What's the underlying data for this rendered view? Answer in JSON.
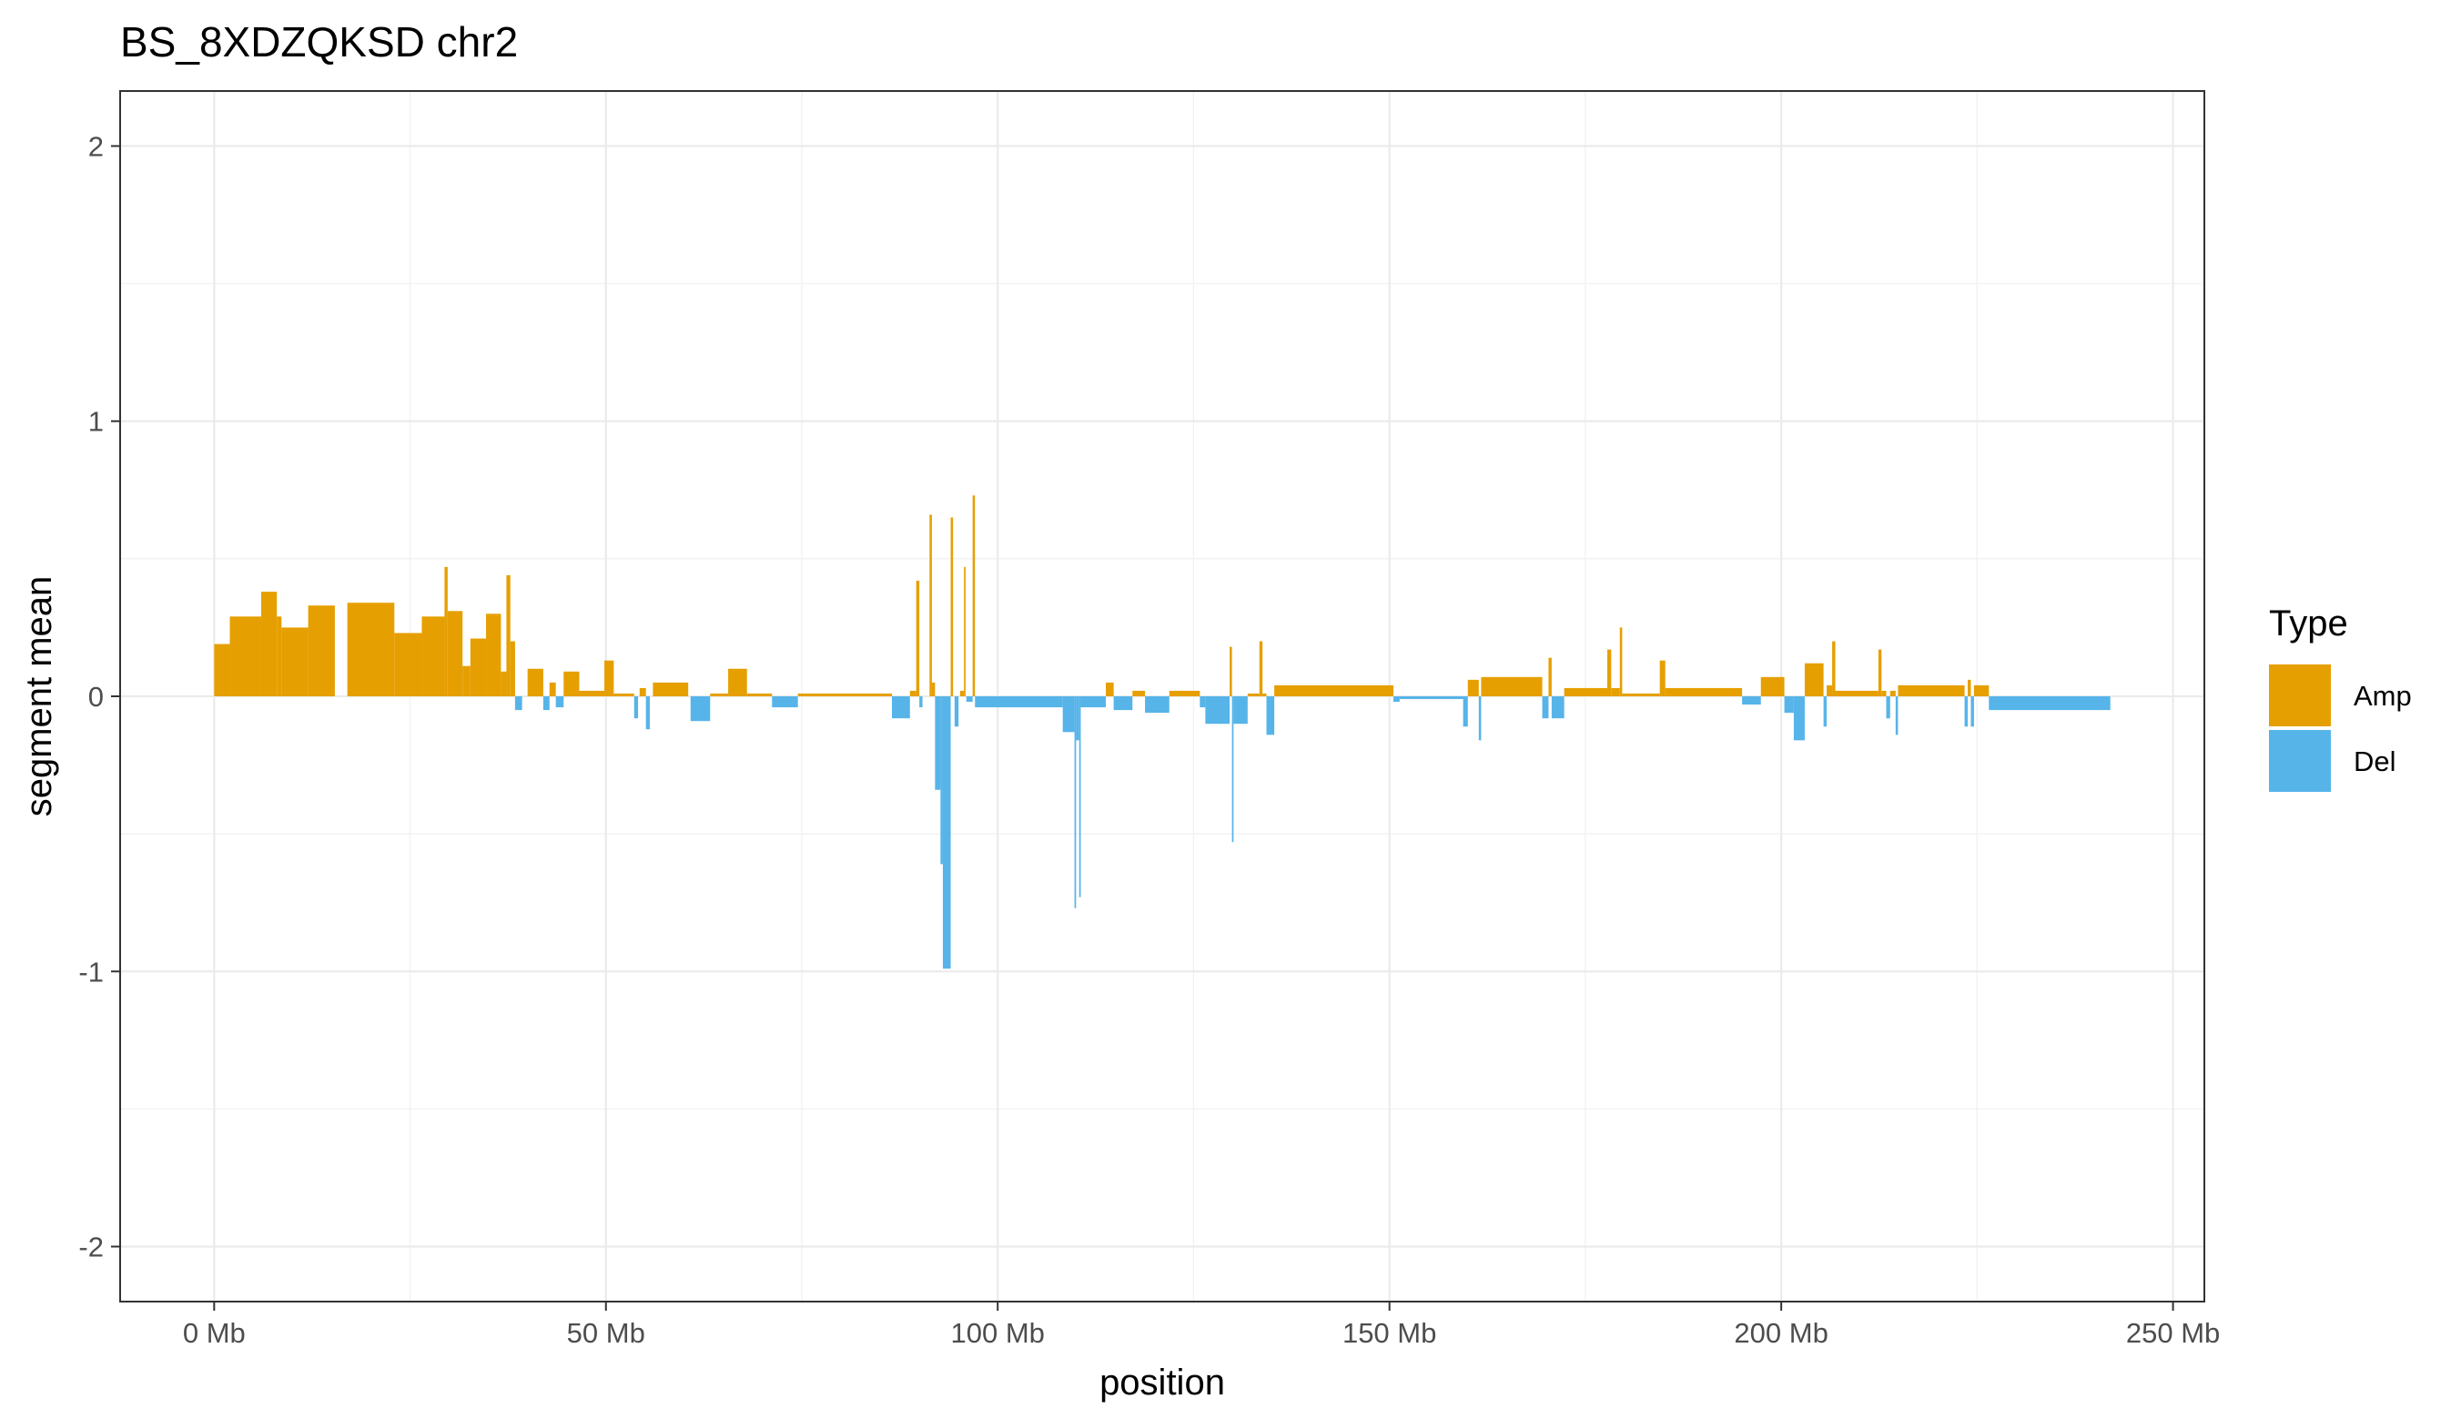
{
  "chart_data": {
    "type": "bar",
    "title": "BS_8XDZQKSD chr2",
    "xlabel": "position",
    "ylabel": "segment mean",
    "xlim": [
      -12,
      254
    ],
    "ylim": [
      -2.2,
      2.2
    ],
    "x_unit": "Mb",
    "x_ticks": [
      0,
      50,
      100,
      150,
      200,
      250
    ],
    "x_tick_labels": [
      "0 Mb",
      "50 Mb",
      "100 Mb",
      "150 Mb",
      "200 Mb",
      "250 Mb"
    ],
    "y_ticks": [
      -2,
      -1,
      0,
      1,
      2
    ],
    "y_tick_labels": [
      "-2",
      "-1",
      "0",
      "1",
      "2"
    ],
    "grid": true,
    "legend": {
      "title": "Type",
      "position": "right",
      "entries": [
        {
          "label": "Amp",
          "color": "#E69F00"
        },
        {
          "label": "Del",
          "color": "#56B4E9"
        }
      ]
    },
    "colors": {
      "Amp": "#E69F00",
      "Del": "#56B4E9"
    },
    "segments": [
      {
        "start": 0.0,
        "end": 2.0,
        "value": 0.19,
        "type": "Amp"
      },
      {
        "start": 2.0,
        "end": 6.0,
        "value": 0.29,
        "type": "Amp"
      },
      {
        "start": 6.0,
        "end": 8.0,
        "value": 0.38,
        "type": "Amp"
      },
      {
        "start": 8.0,
        "end": 8.6,
        "value": 0.29,
        "type": "Amp"
      },
      {
        "start": 8.6,
        "end": 12.0,
        "value": 0.25,
        "type": "Amp"
      },
      {
        "start": 12.0,
        "end": 15.4,
        "value": 0.33,
        "type": "Amp"
      },
      {
        "start": 17.0,
        "end": 23.0,
        "value": 0.34,
        "type": "Amp"
      },
      {
        "start": 23.0,
        "end": 26.5,
        "value": 0.23,
        "type": "Amp"
      },
      {
        "start": 26.5,
        "end": 29.4,
        "value": 0.29,
        "type": "Amp"
      },
      {
        "start": 29.4,
        "end": 29.8,
        "value": 0.47,
        "type": "Amp"
      },
      {
        "start": 29.8,
        "end": 31.7,
        "value": 0.31,
        "type": "Amp"
      },
      {
        "start": 31.7,
        "end": 32.7,
        "value": 0.11,
        "type": "Amp"
      },
      {
        "start": 32.7,
        "end": 34.7,
        "value": 0.21,
        "type": "Amp"
      },
      {
        "start": 34.7,
        "end": 36.6,
        "value": 0.3,
        "type": "Amp"
      },
      {
        "start": 36.6,
        "end": 37.3,
        "value": 0.09,
        "type": "Amp"
      },
      {
        "start": 37.3,
        "end": 37.8,
        "value": 0.44,
        "type": "Amp"
      },
      {
        "start": 37.8,
        "end": 38.4,
        "value": 0.2,
        "type": "Amp"
      },
      {
        "start": 38.4,
        "end": 39.3,
        "value": -0.05,
        "type": "Del"
      },
      {
        "start": 40.0,
        "end": 42.0,
        "value": 0.1,
        "type": "Amp"
      },
      {
        "start": 42.0,
        "end": 42.8,
        "value": -0.05,
        "type": "Del"
      },
      {
        "start": 42.8,
        "end": 43.6,
        "value": 0.05,
        "type": "Amp"
      },
      {
        "start": 43.6,
        "end": 44.6,
        "value": -0.04,
        "type": "Del"
      },
      {
        "start": 44.6,
        "end": 46.6,
        "value": 0.09,
        "type": "Amp"
      },
      {
        "start": 46.6,
        "end": 49.8,
        "value": 0.02,
        "type": "Amp"
      },
      {
        "start": 49.8,
        "end": 51.0,
        "value": 0.13,
        "type": "Amp"
      },
      {
        "start": 51.0,
        "end": 53.6,
        "value": 0.01,
        "type": "Amp"
      },
      {
        "start": 53.6,
        "end": 54.1,
        "value": -0.08,
        "type": "Del"
      },
      {
        "start": 54.3,
        "end": 55.1,
        "value": 0.03,
        "type": "Amp"
      },
      {
        "start": 55.1,
        "end": 55.6,
        "value": -0.12,
        "type": "Del"
      },
      {
        "start": 56.0,
        "end": 60.5,
        "value": 0.05,
        "type": "Amp"
      },
      {
        "start": 60.8,
        "end": 63.3,
        "value": -0.09,
        "type": "Del"
      },
      {
        "start": 63.3,
        "end": 65.6,
        "value": 0.01,
        "type": "Amp"
      },
      {
        "start": 65.6,
        "end": 68.0,
        "value": 0.1,
        "type": "Amp"
      },
      {
        "start": 68.0,
        "end": 71.2,
        "value": 0.01,
        "type": "Amp"
      },
      {
        "start": 71.2,
        "end": 74.5,
        "value": -0.04,
        "type": "Del"
      },
      {
        "start": 74.5,
        "end": 86.5,
        "value": 0.01,
        "type": "Amp"
      },
      {
        "start": 86.5,
        "end": 88.8,
        "value": -0.08,
        "type": "Del"
      },
      {
        "start": 88.8,
        "end": 89.6,
        "value": 0.02,
        "type": "Amp"
      },
      {
        "start": 89.6,
        "end": 90.0,
        "value": 0.42,
        "type": "Amp"
      },
      {
        "start": 90.0,
        "end": 90.4,
        "value": -0.04,
        "type": "Del"
      },
      {
        "start": 91.3,
        "end": 91.6,
        "value": 0.66,
        "type": "Amp"
      },
      {
        "start": 91.6,
        "end": 92.0,
        "value": 0.05,
        "type": "Amp"
      },
      {
        "start": 92.0,
        "end": 92.7,
        "value": -0.34,
        "type": "Del"
      },
      {
        "start": 92.7,
        "end": 93.0,
        "value": -0.61,
        "type": "Del"
      },
      {
        "start": 93.0,
        "end": 94.0,
        "value": -0.99,
        "type": "Del"
      },
      {
        "start": 94.0,
        "end": 94.3,
        "value": 0.65,
        "type": "Amp"
      },
      {
        "start": 94.5,
        "end": 95.0,
        "value": -0.11,
        "type": "Del"
      },
      {
        "start": 95.2,
        "end": 95.7,
        "value": 0.02,
        "type": "Amp"
      },
      {
        "start": 95.7,
        "end": 95.9,
        "value": 0.47,
        "type": "Amp"
      },
      {
        "start": 96.0,
        "end": 96.8,
        "value": -0.02,
        "type": "Del"
      },
      {
        "start": 96.8,
        "end": 97.1,
        "value": 0.73,
        "type": "Amp"
      },
      {
        "start": 97.1,
        "end": 108.3,
        "value": -0.04,
        "type": "Del"
      },
      {
        "start": 108.3,
        "end": 109.8,
        "value": -0.13,
        "type": "Del"
      },
      {
        "start": 109.8,
        "end": 110.0,
        "value": -0.77,
        "type": "Del"
      },
      {
        "start": 110.0,
        "end": 110.4,
        "value": -0.16,
        "type": "Del"
      },
      {
        "start": 110.4,
        "end": 110.6,
        "value": -0.73,
        "type": "Del"
      },
      {
        "start": 110.6,
        "end": 113.8,
        "value": -0.04,
        "type": "Del"
      },
      {
        "start": 113.8,
        "end": 114.8,
        "value": 0.05,
        "type": "Amp"
      },
      {
        "start": 114.8,
        "end": 117.2,
        "value": -0.05,
        "type": "Del"
      },
      {
        "start": 117.2,
        "end": 118.8,
        "value": 0.02,
        "type": "Amp"
      },
      {
        "start": 118.8,
        "end": 121.9,
        "value": -0.06,
        "type": "Del"
      },
      {
        "start": 121.9,
        "end": 125.8,
        "value": 0.02,
        "type": "Amp"
      },
      {
        "start": 125.8,
        "end": 126.5,
        "value": -0.04,
        "type": "Del"
      },
      {
        "start": 126.5,
        "end": 129.6,
        "value": -0.1,
        "type": "Del"
      },
      {
        "start": 129.6,
        "end": 129.9,
        "value": 0.18,
        "type": "Amp"
      },
      {
        "start": 129.9,
        "end": 130.1,
        "value": -0.53,
        "type": "Del"
      },
      {
        "start": 130.1,
        "end": 131.9,
        "value": -0.1,
        "type": "Del"
      },
      {
        "start": 131.9,
        "end": 133.4,
        "value": 0.01,
        "type": "Amp"
      },
      {
        "start": 133.4,
        "end": 133.8,
        "value": 0.2,
        "type": "Amp"
      },
      {
        "start": 133.8,
        "end": 134.3,
        "value": 0.01,
        "type": "Amp"
      },
      {
        "start": 134.3,
        "end": 135.3,
        "value": -0.14,
        "type": "Del"
      },
      {
        "start": 135.3,
        "end": 150.5,
        "value": 0.04,
        "type": "Amp"
      },
      {
        "start": 150.5,
        "end": 151.3,
        "value": -0.02,
        "type": "Del"
      },
      {
        "start": 151.3,
        "end": 159.4,
        "value": -0.01,
        "type": "Del"
      },
      {
        "start": 159.4,
        "end": 160.0,
        "value": -0.11,
        "type": "Del"
      },
      {
        "start": 160.0,
        "end": 161.4,
        "value": 0.06,
        "type": "Amp"
      },
      {
        "start": 161.4,
        "end": 161.7,
        "value": -0.16,
        "type": "Del"
      },
      {
        "start": 161.7,
        "end": 169.5,
        "value": 0.07,
        "type": "Amp"
      },
      {
        "start": 169.5,
        "end": 170.3,
        "value": -0.08,
        "type": "Del"
      },
      {
        "start": 170.3,
        "end": 170.7,
        "value": 0.14,
        "type": "Amp"
      },
      {
        "start": 170.7,
        "end": 172.3,
        "value": -0.08,
        "type": "Del"
      },
      {
        "start": 172.3,
        "end": 177.8,
        "value": 0.03,
        "type": "Amp"
      },
      {
        "start": 177.8,
        "end": 178.3,
        "value": 0.17,
        "type": "Amp"
      },
      {
        "start": 178.3,
        "end": 179.4,
        "value": 0.03,
        "type": "Amp"
      },
      {
        "start": 179.4,
        "end": 179.7,
        "value": 0.25,
        "type": "Amp"
      },
      {
        "start": 179.7,
        "end": 184.5,
        "value": 0.01,
        "type": "Amp"
      },
      {
        "start": 184.5,
        "end": 185.2,
        "value": 0.13,
        "type": "Amp"
      },
      {
        "start": 185.2,
        "end": 195.0,
        "value": 0.03,
        "type": "Amp"
      },
      {
        "start": 195.0,
        "end": 197.4,
        "value": -0.03,
        "type": "Del"
      },
      {
        "start": 197.4,
        "end": 200.4,
        "value": 0.07,
        "type": "Amp"
      },
      {
        "start": 200.4,
        "end": 201.6,
        "value": -0.06,
        "type": "Del"
      },
      {
        "start": 201.6,
        "end": 203.0,
        "value": -0.16,
        "type": "Del"
      },
      {
        "start": 203.0,
        "end": 205.4,
        "value": 0.12,
        "type": "Amp"
      },
      {
        "start": 205.4,
        "end": 205.8,
        "value": -0.11,
        "type": "Del"
      },
      {
        "start": 205.8,
        "end": 206.5,
        "value": 0.04,
        "type": "Amp"
      },
      {
        "start": 206.5,
        "end": 206.9,
        "value": 0.2,
        "type": "Amp"
      },
      {
        "start": 206.9,
        "end": 212.4,
        "value": 0.02,
        "type": "Amp"
      },
      {
        "start": 212.4,
        "end": 212.8,
        "value": 0.17,
        "type": "Amp"
      },
      {
        "start": 212.8,
        "end": 213.4,
        "value": 0.02,
        "type": "Amp"
      },
      {
        "start": 213.4,
        "end": 213.9,
        "value": -0.08,
        "type": "Del"
      },
      {
        "start": 213.9,
        "end": 214.6,
        "value": 0.02,
        "type": "Amp"
      },
      {
        "start": 214.6,
        "end": 214.9,
        "value": -0.14,
        "type": "Del"
      },
      {
        "start": 214.9,
        "end": 223.4,
        "value": 0.04,
        "type": "Amp"
      },
      {
        "start": 223.4,
        "end": 223.8,
        "value": -0.11,
        "type": "Del"
      },
      {
        "start": 223.8,
        "end": 224.2,
        "value": 0.06,
        "type": "Amp"
      },
      {
        "start": 224.2,
        "end": 224.6,
        "value": -0.11,
        "type": "Del"
      },
      {
        "start": 224.6,
        "end": 226.5,
        "value": 0.04,
        "type": "Amp"
      },
      {
        "start": 226.5,
        "end": 242.0,
        "value": -0.05,
        "type": "Del"
      }
    ]
  }
}
